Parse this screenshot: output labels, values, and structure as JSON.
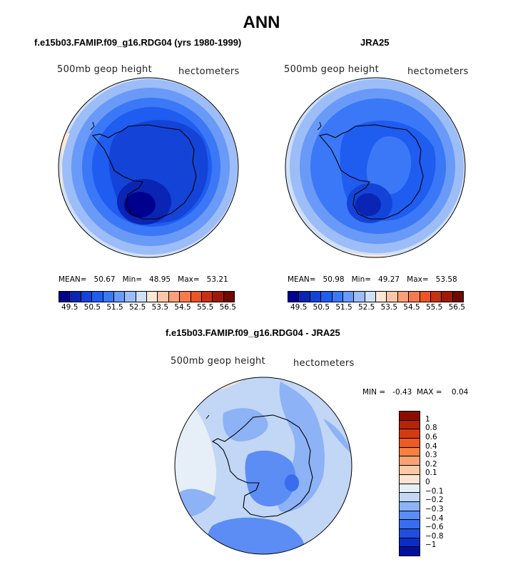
{
  "title": "ANN",
  "panels": {
    "left": {
      "case": "f.e15b03.FAMIP.f09_g16.RDG04 (yrs 1980-1999)",
      "field": "500mb geop height",
      "units": "hectometers",
      "stats": "MEAN=   50.67   Min=   48.95   Max=   53.21"
    },
    "right": {
      "case": "JRA25",
      "field": "500mb geop height",
      "units": "hectometers",
      "stats": "MEAN=   50.98   Min=   49.27   Max=   53.58"
    },
    "diff": {
      "case": "f.e15b03.FAMIP.f09_g16.RDG04 - JRA25",
      "field": "500mb geop height",
      "units": "hectometers",
      "stats": "MIN =   -0.43  MAX =    0.04"
    }
  },
  "colorbar_abs": {
    "ticks": [
      "49.5",
      "50.5",
      "51.5",
      "52.5",
      "53.5",
      "54.5",
      "55.5",
      "56.5"
    ],
    "colors": [
      "#00008f",
      "#0a24b4",
      "#1443d8",
      "#1f5cf0",
      "#3b78f7",
      "#6a9af7",
      "#9cbdf7",
      "#cfe0f7",
      "#fde7d6",
      "#fcc7a8",
      "#f9a07a",
      "#f47a50",
      "#ec5528",
      "#c93112",
      "#9e1a08",
      "#6e0a00"
    ]
  },
  "colorbar_diff": {
    "ticks": [
      "1",
      "0.8",
      "0.6",
      "0.4",
      "0.3",
      "0.2",
      "0.1",
      "0",
      "−0.1",
      "−0.2",
      "−0.3",
      "−0.4",
      "−0.6",
      "−0.8",
      "−1"
    ],
    "colors": [
      "#8a0e00",
      "#b52406",
      "#d23a12",
      "#ec5a26",
      "#f5803f",
      "#f9a273",
      "#fcc9a6",
      "#fde3d2",
      "#e6eef8",
      "#c2d6f6",
      "#8db2f5",
      "#5b8df5",
      "#3a6cf0",
      "#1f4ee0",
      "#0c2cc6",
      "#00109e"
    ]
  }
}
